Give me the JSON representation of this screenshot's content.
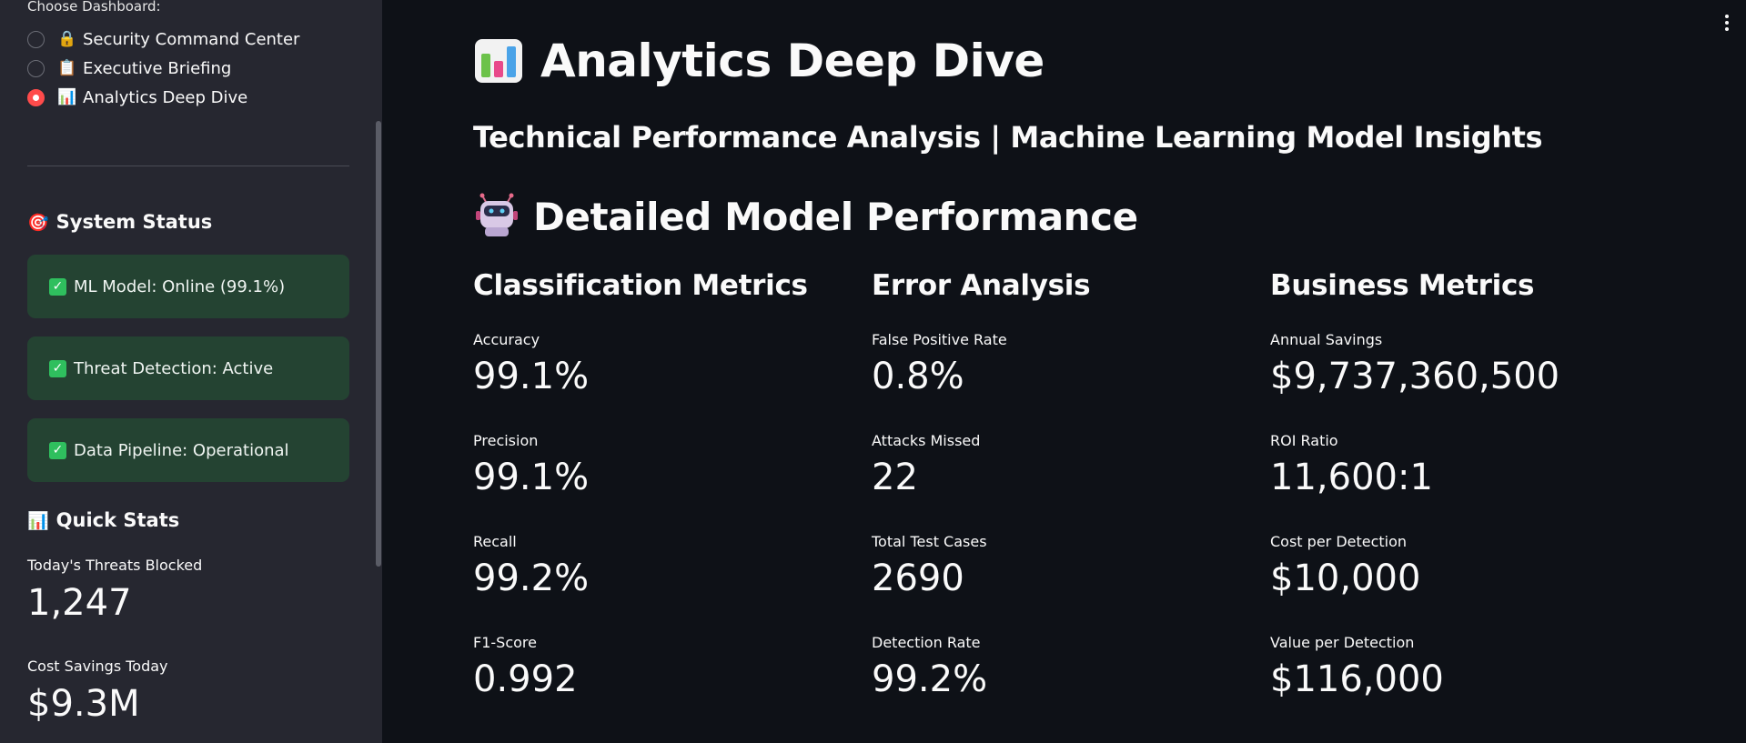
{
  "sidebar": {
    "choose_label": "Choose Dashboard:",
    "dashboards": [
      {
        "emoji": "🔒",
        "label": "Security Command Center",
        "selected": false
      },
      {
        "emoji": "📋",
        "label": "Executive Briefing",
        "selected": false
      },
      {
        "emoji": "📊",
        "label": "Analytics Deep Dive",
        "selected": true
      }
    ],
    "system_status": {
      "emoji": "🎯",
      "title": "System Status",
      "items": [
        {
          "icon": "check-icon",
          "text": "ML Model: Online (99.1%)"
        },
        {
          "icon": "check-icon",
          "text": "Threat Detection: Active"
        },
        {
          "icon": "check-icon",
          "text": "Data Pipeline: Operational"
        }
      ]
    },
    "quick_stats": {
      "emoji": "📊",
      "title": "Quick Stats",
      "stats": [
        {
          "label": "Today's Threats Blocked",
          "value": "1,247"
        },
        {
          "label": "Cost Savings Today",
          "value": "$9.3M"
        }
      ]
    }
  },
  "main": {
    "title": "Analytics Deep Dive",
    "title_icon": "bar-chart-icon",
    "subtitle": "Technical Performance Analysis | Machine Learning Model Insights",
    "section_title": "Detailed Model Performance",
    "section_icon": "robot-icon",
    "columns": [
      {
        "heading": "Classification Metrics",
        "metrics": [
          {
            "label": "Accuracy",
            "value": "99.1%"
          },
          {
            "label": "Precision",
            "value": "99.1%"
          },
          {
            "label": "Recall",
            "value": "99.2%"
          },
          {
            "label": "F1-Score",
            "value": "0.992"
          }
        ]
      },
      {
        "heading": "Error Analysis",
        "metrics": [
          {
            "label": "False Positive Rate",
            "value": "0.8%"
          },
          {
            "label": "Attacks Missed",
            "value": "22"
          },
          {
            "label": "Total Test Cases",
            "value": "2690"
          },
          {
            "label": "Detection Rate",
            "value": "99.2%"
          }
        ]
      },
      {
        "heading": "Business Metrics",
        "metrics": [
          {
            "label": "Annual Savings",
            "value": "$9,737,360,500"
          },
          {
            "label": "ROI Ratio",
            "value": "11,600:1"
          },
          {
            "label": "Cost per Detection",
            "value": "$10,000"
          },
          {
            "label": "Value per Detection",
            "value": "$116,000"
          }
        ]
      }
    ]
  },
  "colors": {
    "app_background": "#0e1117",
    "sidebar_background": "#262730",
    "status_background": "#244332",
    "check_green": "#2fbf5e",
    "radio_selected": "#ff4b4b"
  }
}
